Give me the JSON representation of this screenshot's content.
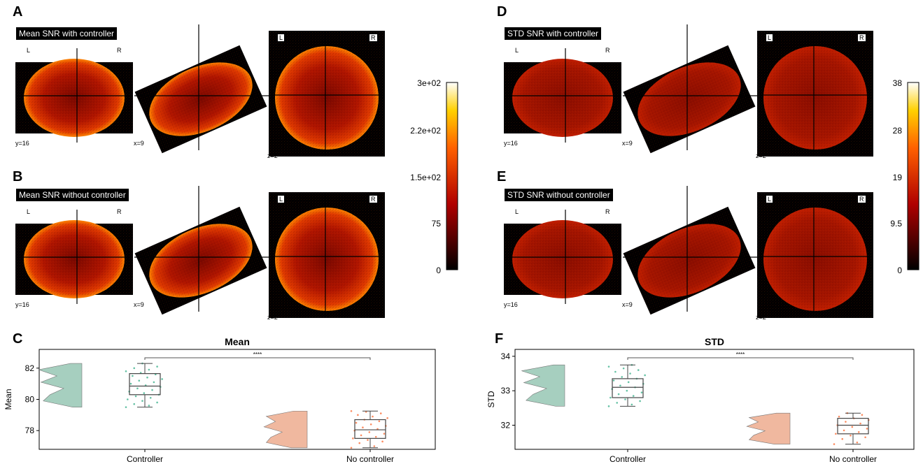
{
  "panels": {
    "A": {
      "letter": "A",
      "title": "Mean SNR with controller"
    },
    "B": {
      "letter": "B",
      "title": "Mean SNR without controller"
    },
    "D": {
      "letter": "D",
      "title": "STD SNR with controller"
    },
    "E": {
      "letter": "E",
      "title": "STD SNR without controller"
    },
    "C": {
      "letter": "C"
    },
    "F": {
      "letter": "F"
    }
  },
  "orientation": {
    "left": "L",
    "right": "R"
  },
  "slices": {
    "y": "y=16",
    "x": "x=9",
    "z": "z=2"
  },
  "colorbars": {
    "mean": {
      "ticks": [
        "3e+02",
        "2.2e+02",
        "1.5e+02",
        "75",
        "0"
      ]
    },
    "std": {
      "ticks": [
        "38",
        "28",
        "19",
        "9.5",
        "0"
      ]
    }
  },
  "colors": {
    "controller": "#66c2a5",
    "no_controller": "#fc8d62",
    "violin_controller": "#a6cfbf",
    "violin_no_controller": "#f0b89f"
  },
  "chart_data": [
    {
      "type": "box",
      "title": "Mean",
      "ylabel": "Mean",
      "xlabel": "",
      "categories": [
        "Controller",
        "No controller"
      ],
      "ylim": [
        76.8,
        83.2
      ],
      "yticks": [
        "76",
        "78",
        "80",
        "82"
      ],
      "significance": "****",
      "boxes": [
        {
          "category": "Controller",
          "min": 79.5,
          "q1": 80.3,
          "median": 80.85,
          "q3": 81.65,
          "max": 82.3
        },
        {
          "category": "No controller",
          "min": 76.9,
          "q1": 77.5,
          "median": 78.05,
          "q3": 78.7,
          "max": 79.25
        }
      ],
      "points": {
        "Controller": [
          79.5,
          79.6,
          79.7,
          79.8,
          79.9,
          80.0,
          80.1,
          80.2,
          80.3,
          80.4,
          80.5,
          80.6,
          80.7,
          80.8,
          80.9,
          81.0,
          81.1,
          81.2,
          81.3,
          81.4,
          81.5,
          81.6,
          81.7,
          81.8,
          81.9,
          82.0,
          82.1,
          82.3
        ],
        "No controller": [
          76.9,
          77.0,
          77.2,
          77.3,
          77.4,
          77.5,
          77.6,
          77.7,
          77.8,
          77.9,
          78.0,
          78.1,
          78.2,
          78.3,
          78.4,
          78.5,
          78.6,
          78.7,
          78.8,
          78.9,
          79.0,
          79.1,
          79.2,
          79.25
        ]
      }
    },
    {
      "type": "box",
      "title": "STD",
      "ylabel": "STD",
      "xlabel": "",
      "categories": [
        "Controller",
        "No controller"
      ],
      "ylim": [
        31.3,
        34.2
      ],
      "yticks": [
        "32",
        "33",
        "34"
      ],
      "significance": "****",
      "boxes": [
        {
          "category": "Controller",
          "min": 32.55,
          "q1": 32.8,
          "median": 33.1,
          "q3": 33.35,
          "max": 33.75
        },
        {
          "category": "No controller",
          "min": 31.45,
          "q1": 31.75,
          "median": 32.0,
          "q3": 32.2,
          "max": 32.35
        }
      ],
      "points": {
        "Controller": [
          32.55,
          32.6,
          32.65,
          32.7,
          32.75,
          32.8,
          32.85,
          32.9,
          32.95,
          33.0,
          33.05,
          33.1,
          33.15,
          33.2,
          33.25,
          33.3,
          33.35,
          33.4,
          33.45,
          33.5,
          33.55,
          33.6,
          33.65,
          33.7,
          33.75
        ],
        "No controller": [
          31.45,
          31.5,
          31.6,
          31.65,
          31.7,
          31.75,
          31.8,
          31.85,
          31.9,
          31.95,
          32.0,
          32.05,
          32.1,
          32.15,
          32.2,
          32.25,
          32.3,
          32.35
        ]
      }
    }
  ]
}
